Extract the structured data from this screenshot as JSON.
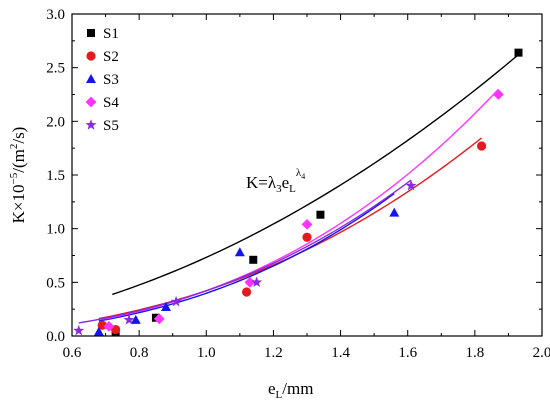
{
  "chart_data": {
    "type": "scatter",
    "xlabel": "e",
    "xlabel_sub": "L",
    "xlabel_unit": "/mm",
    "ylabel": "K×10",
    "ylabel_exp": "−5",
    "ylabel_unit": "/(m",
    "ylabel_unit_exp": "2",
    "ylabel_unit_tail": "/s)",
    "xlim": [
      0.6,
      2.0
    ],
    "ylim": [
      0.0,
      3.0
    ],
    "x_ticks": [
      "0.6",
      "0.8",
      "1.0",
      "1.2",
      "1.4",
      "1.6",
      "1.8",
      "2.0"
    ],
    "y_ticks": [
      "0.0",
      "0.5",
      "1.0",
      "1.5",
      "2.0",
      "2.5",
      "3.0"
    ],
    "legend_position": "top-left",
    "annotation": {
      "base": "K=λ",
      "sub1": "3",
      "mid": "e",
      "sub2": "L",
      "sup": "λ",
      "sup_sub": "4"
    },
    "series": [
      {
        "name": "S1",
        "color": "#000000",
        "marker": "square",
        "points": [
          [
            0.73,
            0.04
          ],
          [
            0.85,
            0.17
          ],
          [
            1.14,
            0.71
          ],
          [
            1.34,
            1.13
          ],
          [
            1.93,
            2.64
          ]
        ],
        "fit": {
          "a": 0.7327,
          "b": 1.939,
          "x_range": [
            0.72,
            1.93
          ]
        }
      },
      {
        "name": "S2",
        "color": "#e41a1c",
        "marker": "circle",
        "points": [
          [
            0.69,
            0.1
          ],
          [
            0.73,
            0.06
          ],
          [
            1.12,
            0.41
          ],
          [
            1.3,
            0.92
          ],
          [
            1.82,
            1.77
          ]
        ],
        "fit": {
          "a": 0.4217,
          "b": 2.465,
          "x_range": [
            0.68,
            1.82
          ]
        }
      },
      {
        "name": "S3",
        "color": "#1414f0",
        "marker": "triangle",
        "points": [
          [
            0.68,
            0.04
          ],
          [
            0.79,
            0.15
          ],
          [
            0.88,
            0.27
          ],
          [
            1.1,
            0.78
          ],
          [
            1.56,
            1.15
          ]
        ],
        "fit": {
          "a": 0.3982,
          "b": 2.708,
          "x_range": [
            0.68,
            1.56
          ]
        }
      },
      {
        "name": "S4",
        "color": "#ff33ff",
        "marker": "diamond",
        "points": [
          [
            0.71,
            0.09
          ],
          [
            0.86,
            0.16
          ],
          [
            1.13,
            0.5
          ],
          [
            1.3,
            1.04
          ],
          [
            1.87,
            2.25
          ]
        ],
        "fit": {
          "a": 0.4217,
          "b": 2.709,
          "x_range": [
            0.7,
            1.87
          ]
        }
      },
      {
        "name": "S5",
        "color": "#8a2be2",
        "marker": "star",
        "points": [
          [
            0.62,
            0.05
          ],
          [
            0.77,
            0.15
          ],
          [
            0.91,
            0.32
          ],
          [
            1.15,
            0.5
          ],
          [
            1.61,
            1.4
          ]
        ],
        "fit": {
          "a": 0.4217,
          "b": 2.598,
          "x_range": [
            0.62,
            1.61
          ]
        }
      }
    ]
  }
}
